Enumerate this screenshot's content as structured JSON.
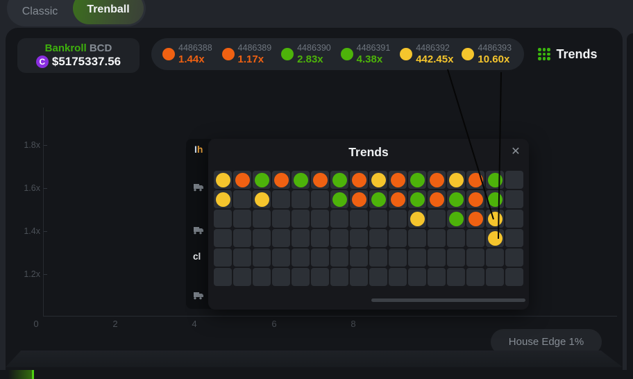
{
  "tabs": {
    "classic": "Classic",
    "trenball": "Trenball"
  },
  "bankroll": {
    "label": "Bankroll",
    "currency": "BCD",
    "coin_symbol": "C",
    "amount": "$5175337.56"
  },
  "results": [
    {
      "id": "4486388",
      "multiplier": "1.44x",
      "color": "orange"
    },
    {
      "id": "4486389",
      "multiplier": "1.17x",
      "color": "orange"
    },
    {
      "id": "4486390",
      "multiplier": "2.83x",
      "color": "green"
    },
    {
      "id": "4486391",
      "multiplier": "4.38x",
      "color": "green"
    },
    {
      "id": "4486392",
      "multiplier": "442.45x",
      "color": "yellow"
    },
    {
      "id": "4486393",
      "multiplier": "10.60x",
      "color": "yellow"
    }
  ],
  "trends_button": {
    "label": "Trends"
  },
  "chart": {
    "y_ticks": [
      "1.8x",
      "1.6x",
      "1.4x",
      "1.2x"
    ],
    "x_ticks": [
      "0",
      "2",
      "4",
      "6",
      "8"
    ]
  },
  "house_edge": {
    "label": "House Edge 1%"
  },
  "modal": {
    "title": "Trends",
    "close_symbol": "✕",
    "grid_rows": [
      [
        "Y",
        "O",
        "G",
        "O",
        "G",
        "O",
        "G",
        "O",
        "Y",
        "O",
        "G",
        "O",
        "Y",
        "O",
        "G",
        ""
      ],
      [
        "Y",
        "",
        "Y",
        "",
        "",
        "",
        "G",
        "O",
        "G",
        "O",
        "G",
        "O",
        "G",
        "O",
        "G",
        ""
      ],
      [
        "",
        "",
        "",
        "",
        "",
        "",
        "",
        "",
        "",
        "",
        "Y",
        "",
        "G",
        "O",
        "Y",
        ""
      ],
      [
        "",
        "",
        "",
        "",
        "",
        "",
        "",
        "",
        "",
        "",
        "",
        "",
        "",
        "",
        "Y",
        ""
      ],
      [
        "",
        "",
        "",
        "",
        "",
        "",
        "",
        "",
        "",
        "",
        "",
        "",
        "",
        "",
        "",
        ""
      ],
      [
        "",
        "",
        "",
        "",
        "",
        "",
        "",
        "",
        "",
        "",
        "",
        "",
        "",
        "",
        "",
        ""
      ]
    ]
  },
  "background_panel": {
    "fragment_top_a": "I",
    "fragment_top_b": "h",
    "fragment_mid": "cl"
  },
  "colors": {
    "green": "#4db30a",
    "orange": "#f06112",
    "yellow": "#f5c52d",
    "accent_green": "#3bb60e",
    "progress_green": "#4fce12"
  }
}
